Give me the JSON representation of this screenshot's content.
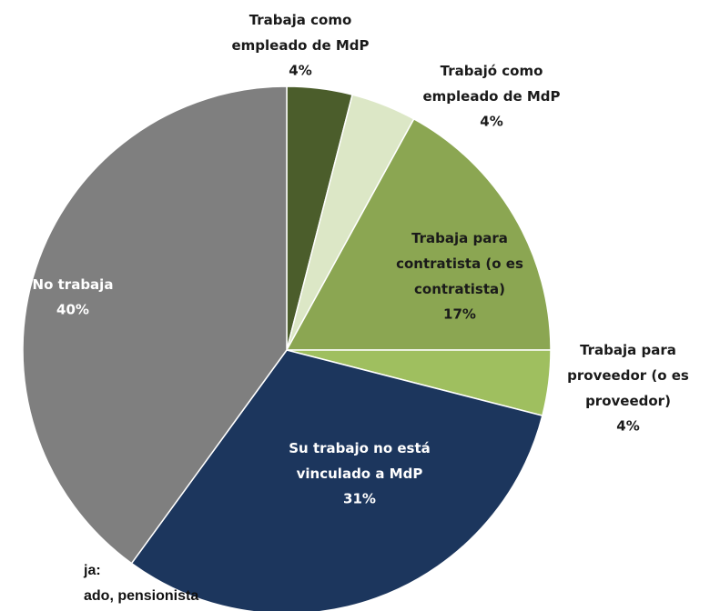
{
  "chart_data": {
    "type": "pie",
    "categories": [
      "Trabaja como\nempleado de MdP",
      "Trabajó como\nempleado de MdP",
      "Trabaja para\ncontratista (o es\ncontratista)",
      "Trabaja para\nproveedor (o es\nproveedor)",
      "Su trabajo no está\nvinculado a MdP",
      "No trabaja"
    ],
    "values": [
      4,
      4,
      17,
      4,
      31,
      40
    ],
    "value_labels": [
      "4%",
      "4%",
      "17%",
      "4%",
      "31%",
      "40%"
    ],
    "colors": [
      "#4b5d2b",
      "#dce7c6",
      "#8ba652",
      "#9fbf5f",
      "#1c365d",
      "#7f7f7f"
    ],
    "note": [
      "ja:",
      "ado, pensionista"
    ]
  }
}
